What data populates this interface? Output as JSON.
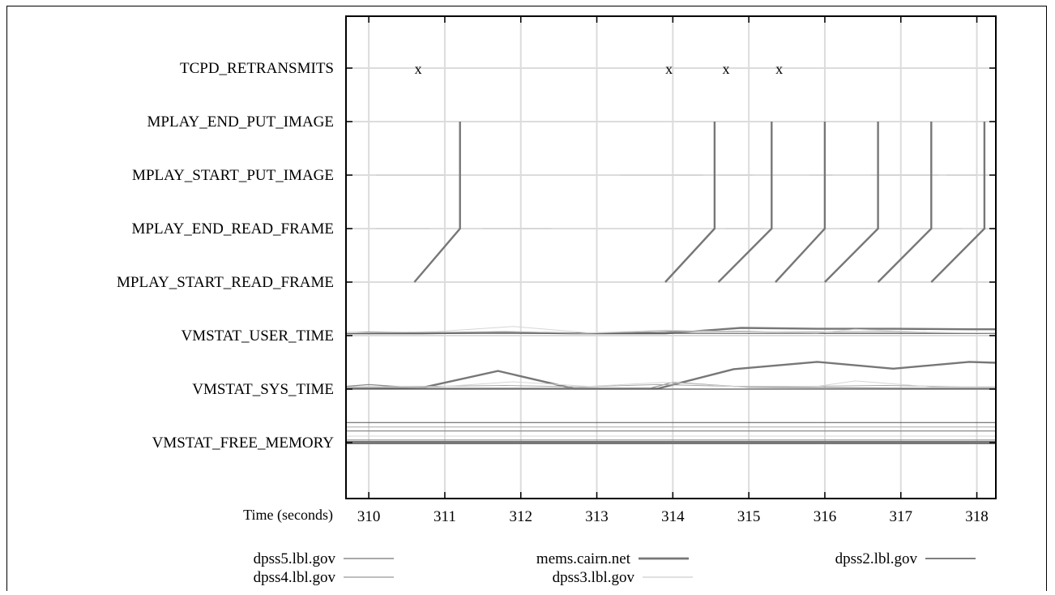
{
  "chart_data": {
    "type": "line",
    "xlabel": "Time (seconds)",
    "ylabel": "",
    "xlim": [
      309.7,
      318.25
    ],
    "xticks": [
      310,
      311,
      312,
      313,
      314,
      315,
      316,
      317,
      318
    ],
    "xtick_labels": [
      "310",
      "311",
      "312",
      "313",
      "314",
      "315",
      "316",
      "317",
      "318"
    ],
    "grid": true,
    "legend_position": "bottom",
    "categories": [
      "TCPD_RETRANSMITS",
      "MPLAY_END_PUT_IMAGE",
      "MPLAY_START_PUT_IMAGE",
      "MPLAY_END_READ_FRAME",
      "MPLAY_START_READ_FRAME",
      "VMSTAT_USER_TIME",
      "VMSTAT_SYS_TIME",
      "VMSTAT_FREE_MEMORY"
    ],
    "legend": [
      {
        "name": "dpss5.lbl.gov",
        "color": "#8c8c8c",
        "width": 1.2,
        "row": 0,
        "col": 0
      },
      {
        "name": "mems.cairn.net",
        "color": "#777777",
        "width": 2.4,
        "row": 0,
        "col": 1
      },
      {
        "name": "dpss2.lbl.gov",
        "color": "#555555",
        "width": 1.0,
        "row": 0,
        "col": 2
      },
      {
        "name": "dpss4.lbl.gov",
        "color": "#a8a8a8",
        "width": 1.0,
        "row": 1,
        "col": 0
      },
      {
        "name": "dpss3.lbl.gov",
        "color": "#d6d6d6",
        "width": 1.0,
        "row": 1,
        "col": 1
      }
    ],
    "retransmit_markers": {
      "label": "x",
      "times": [
        310.65,
        313.95,
        314.7,
        315.4
      ]
    },
    "mplay_lifelines": [
      {
        "start_read": 310.6,
        "end_read": 311.2,
        "start_put": 311.2,
        "end_put": 311.2
      },
      {
        "start_read": 313.9,
        "end_read": 314.55,
        "start_put": 314.55,
        "end_put": 314.55
      },
      {
        "start_read": 314.6,
        "end_read": 315.3,
        "start_put": 315.3,
        "end_put": 315.3
      },
      {
        "start_read": 315.35,
        "end_read": 316.0,
        "start_put": 316.0,
        "end_put": 316.0
      },
      {
        "start_read": 316.0,
        "end_read": 316.7,
        "start_put": 316.7,
        "end_put": 316.7
      },
      {
        "start_read": 316.7,
        "end_read": 317.4,
        "start_put": 317.4,
        "end_put": 317.4
      },
      {
        "start_read": 317.4,
        "end_read": 318.1,
        "start_put": 318.1,
        "end_put": 318.1
      }
    ],
    "faint_put_segments": [
      {
        "series": "dpss3.lbl.gov",
        "from": 310.1,
        "to": 311.0,
        "event": "MPLAY_START_PUT_IMAGE"
      },
      {
        "series": "dpss3.lbl.gov",
        "from": 313.3,
        "to": 314.4,
        "event": "MPLAY_START_PUT_IMAGE"
      },
      {
        "series": "dpss3.lbl.gov",
        "from": 314.6,
        "to": 315.05,
        "event": "MPLAY_START_PUT_IMAGE"
      },
      {
        "series": "dpss3.lbl.gov",
        "from": 315.8,
        "to": 316.1,
        "event": "MPLAY_START_PUT_IMAGE"
      },
      {
        "series": "dpss3.lbl.gov",
        "from": 316.6,
        "to": 317.5,
        "event": "MPLAY_START_PUT_IMAGE"
      },
      {
        "series": "dpss3.lbl.gov",
        "from": 317.6,
        "to": 318.0,
        "event": "MPLAY_START_PUT_IMAGE"
      },
      {
        "series": "dpss3.lbl.gov",
        "from": 310.1,
        "to": 310.8,
        "event": "MPLAY_END_READ_FRAME"
      },
      {
        "series": "dpss3.lbl.gov",
        "from": 311.5,
        "to": 312.4,
        "event": "MPLAY_END_READ_FRAME"
      },
      {
        "series": "dpss3.lbl.gov",
        "from": 314.7,
        "to": 315.2,
        "event": "MPLAY_END_READ_FRAME"
      },
      {
        "series": "dpss3.lbl.gov",
        "from": 316.2,
        "to": 316.6,
        "event": "MPLAY_END_READ_FRAME"
      },
      {
        "series": "dpss3.lbl.gov",
        "from": 317.4,
        "to": 317.8,
        "event": "MPLAY_END_READ_FRAME"
      }
    ],
    "series": [
      {
        "name": "mems.cairn.net",
        "event_band": "VMSTAT_USER_TIME",
        "x": [
          309.7,
          310.7,
          311.7,
          312.7,
          313.9,
          314.9,
          315.9,
          316.9,
          317.9,
          318.25
        ],
        "values": [
          0.05,
          0.05,
          0.07,
          0.05,
          0.05,
          0.17,
          0.15,
          0.15,
          0.14,
          0.14
        ]
      },
      {
        "name": "dpss5.lbl.gov",
        "event_band": "VMSTAT_USER_TIME",
        "x": [
          309.7,
          310.0,
          311.0,
          312.0,
          313.0,
          314.0,
          315.0,
          316.0,
          317.0,
          318.25
        ],
        "values": [
          0.06,
          0.08,
          0.07,
          0.06,
          0.05,
          0.1,
          0.09,
          0.05,
          0.05,
          0.05
        ]
      },
      {
        "name": "dpss2.lbl.gov",
        "event_band": "VMSTAT_USER_TIME",
        "x": [
          309.7,
          310.5,
          311.5,
          312.5,
          313.5,
          314.5,
          315.5,
          316.5,
          317.5,
          318.25
        ],
        "values": [
          0.05,
          0.05,
          0.05,
          0.05,
          0.05,
          0.05,
          0.05,
          0.05,
          0.05,
          0.05
        ]
      },
      {
        "name": "dpss4.lbl.gov",
        "event_band": "VMSTAT_USER_TIME",
        "x": [
          309.7,
          310.8,
          311.8,
          312.8,
          313.8,
          314.8,
          315.8,
          316.8,
          317.8,
          318.25
        ],
        "values": [
          0.07,
          0.07,
          0.09,
          0.05,
          0.09,
          0.08,
          0.08,
          0.09,
          0.06,
          0.06
        ]
      },
      {
        "name": "dpss3.lbl.gov",
        "event_band": "VMSTAT_USER_TIME",
        "x": [
          309.7,
          310.9,
          311.9,
          312.9,
          313.9,
          314.9,
          315.9,
          316.4,
          317.4,
          318.25
        ],
        "values": [
          0.06,
          0.09,
          0.2,
          0.06,
          0.12,
          0.08,
          0.06,
          0.14,
          0.07,
          0.06
        ]
      },
      {
        "name": "mems.cairn.net",
        "event_band": "VMSTAT_SYS_TIME",
        "x": [
          309.7,
          310.7,
          311.7,
          312.7,
          313.8,
          314.8,
          315.9,
          316.9,
          317.9,
          318.25
        ],
        "values": [
          0.02,
          0.03,
          0.4,
          0.01,
          0.01,
          0.44,
          0.6,
          0.45,
          0.6,
          0.58
        ]
      },
      {
        "name": "dpss5.lbl.gov",
        "event_band": "VMSTAT_SYS_TIME",
        "x": [
          309.7,
          310.0,
          310.7,
          311.7,
          312.7,
          313.7,
          314.0,
          315.0,
          316.0,
          317.0,
          318.25
        ],
        "values": [
          0.06,
          0.1,
          0.02,
          0.02,
          0.02,
          0.02,
          0.15,
          0.04,
          0.03,
          0.02,
          0.02
        ]
      },
      {
        "name": "dpss2.lbl.gov",
        "event_band": "VMSTAT_SYS_TIME",
        "x": [
          309.7,
          310.5,
          311.5,
          312.5,
          313.5,
          314.5,
          315.5,
          316.5,
          317.5,
          318.25
        ],
        "values": [
          0.0,
          0.0,
          0.0,
          0.0,
          0.0,
          0.0,
          0.0,
          0.0,
          0.0,
          0.0
        ]
      },
      {
        "name": "dpss4.lbl.gov",
        "event_band": "VMSTAT_SYS_TIME",
        "x": [
          309.7,
          310.8,
          311.8,
          312.8,
          313.8,
          314.8,
          315.8,
          316.8,
          317.8,
          318.25
        ],
        "values": [
          0.05,
          0.06,
          0.08,
          0.05,
          0.1,
          0.06,
          0.06,
          0.08,
          0.05,
          0.05
        ]
      },
      {
        "name": "dpss3.lbl.gov",
        "event_band": "VMSTAT_SYS_TIME",
        "x": [
          309.7,
          310.9,
          311.9,
          312.9,
          313.9,
          314.9,
          315.9,
          316.4,
          317.4,
          318.25
        ],
        "values": [
          0.04,
          0.05,
          0.16,
          0.06,
          0.15,
          0.05,
          0.06,
          0.18,
          0.05,
          0.04
        ]
      }
    ],
    "memory_levels": [
      {
        "name": "dpss2.lbl.gov",
        "value": 0.62
      },
      {
        "name": "dpss4.lbl.gov",
        "value": 0.48
      },
      {
        "name": "dpss5.lbl.gov",
        "value": 0.36
      },
      {
        "name": "dpss3.lbl.gov",
        "value": 0.2
      },
      {
        "name": "dpss5.lbl.gov",
        "value": 0.08
      },
      {
        "name": "mems.cairn.net",
        "value": 0.0
      }
    ]
  }
}
